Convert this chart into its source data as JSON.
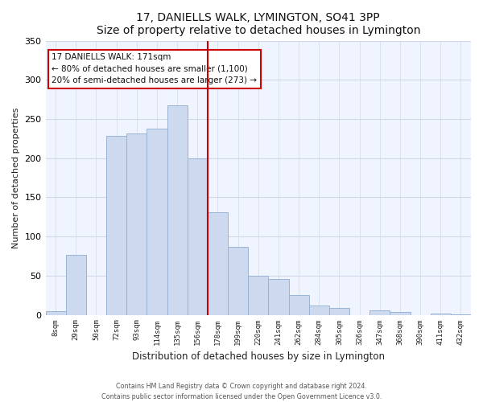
{
  "title": "17, DANIELLS WALK, LYMINGTON, SO41 3PP",
  "subtitle": "Size of property relative to detached houses in Lymington",
  "xlabel": "Distribution of detached houses by size in Lymington",
  "ylabel": "Number of detached properties",
  "bar_labels": [
    "8sqm",
    "29sqm",
    "50sqm",
    "72sqm",
    "93sqm",
    "114sqm",
    "135sqm",
    "156sqm",
    "178sqm",
    "199sqm",
    "220sqm",
    "241sqm",
    "262sqm",
    "284sqm",
    "305sqm",
    "326sqm",
    "347sqm",
    "368sqm",
    "390sqm",
    "411sqm",
    "432sqm"
  ],
  "bar_values": [
    5,
    77,
    0,
    228,
    231,
    238,
    267,
    200,
    131,
    87,
    50,
    46,
    25,
    12,
    9,
    0,
    6,
    4,
    0,
    2,
    1
  ],
  "bar_color": "#ccd9ee",
  "bar_edge_color": "#9ab4d4",
  "ref_line_x": 8.0,
  "annotation_title": "17 DANIELLS WALK: 171sqm",
  "annotation_line1": "← 80% of detached houses are smaller (1,100)",
  "annotation_line2": "20% of semi-detached houses are larger (273) →",
  "annotation_box_edge_color": "#cc0000",
  "ylim": [
    0,
    350
  ],
  "yticks": [
    0,
    50,
    100,
    150,
    200,
    250,
    300,
    350
  ],
  "footer1": "Contains HM Land Registry data © Crown copyright and database right 2024.",
  "footer2": "Contains public sector information licensed under the Open Government Licence v3.0.",
  "bg_color": "#f0f4ff",
  "grid_color": "#d0d8ea"
}
